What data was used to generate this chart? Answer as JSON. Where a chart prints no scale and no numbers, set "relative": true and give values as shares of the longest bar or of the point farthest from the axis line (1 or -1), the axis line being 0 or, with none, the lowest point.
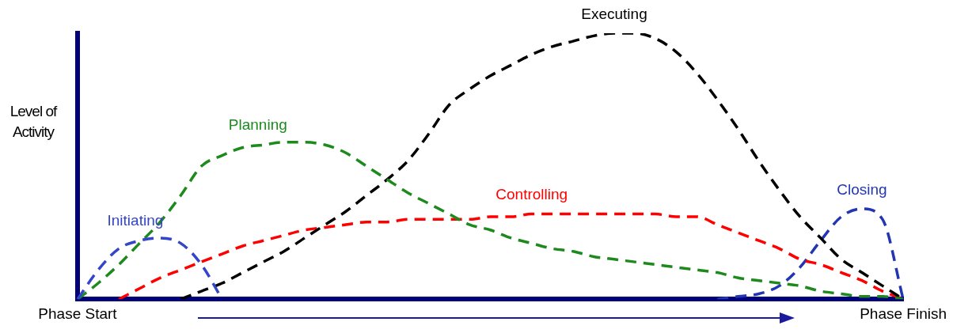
{
  "chart_data": {
    "type": "line",
    "relative": true,
    "ylabel": "Level of Activity",
    "categories": [
      "Phase Start",
      null,
      null,
      null,
      null,
      null,
      null,
      null,
      null,
      null,
      null,
      null,
      null,
      null,
      null,
      null,
      null,
      null,
      null,
      null,
      null,
      null,
      null,
      null,
      null,
      null,
      null,
      null,
      null,
      null,
      null,
      null,
      null,
      null,
      null,
      null,
      null,
      null,
      null,
      null,
      "Phase Finish"
    ],
    "grid": false,
    "legend": false,
    "marker": "none",
    "line_style": "dashed",
    "series": [
      {
        "name": "Initiating",
        "color": "#3345c8",
        "values": [
          0,
          0.11,
          0.19,
          0.22,
          0.23,
          0.21,
          0.13,
          0,
          null,
          null,
          null,
          null,
          null,
          null,
          null,
          null,
          null,
          null,
          null,
          null,
          null,
          null,
          null,
          null,
          null,
          null,
          null,
          null,
          null,
          null,
          null,
          null,
          null,
          null,
          null,
          null,
          null,
          null,
          null,
          null,
          null
        ]
      },
      {
        "name": "Planning",
        "color": "#1e8a1e",
        "values": [
          0,
          0.06,
          0.13,
          0.21,
          0.29,
          0.39,
          0.5,
          0.54,
          0.57,
          0.58,
          0.59,
          0.59,
          0.58,
          0.55,
          0.5,
          0.45,
          0.4,
          0.36,
          0.32,
          0.28,
          0.26,
          0.23,
          0.21,
          0.19,
          0.18,
          0.16,
          0.15,
          0.14,
          0.13,
          0.12,
          0.11,
          0.1,
          0.08,
          0.07,
          0.06,
          0.05,
          0.03,
          0.02,
          0.01,
          0.01,
          0
        ]
      },
      {
        "name": "Executing",
        "color": "#000000",
        "values": [
          null,
          null,
          null,
          null,
          null,
          0,
          0.03,
          0.06,
          0.1,
          0.14,
          0.18,
          0.23,
          0.28,
          0.33,
          0.39,
          0.45,
          0.52,
          0.62,
          0.73,
          0.79,
          0.84,
          0.88,
          0.92,
          0.95,
          0.97,
          0.99,
          1.0,
          1.0,
          0.98,
          0.93,
          0.85,
          0.75,
          0.64,
          0.52,
          0.41,
          0.31,
          0.23,
          0.15,
          0.1,
          0.05,
          0
        ]
      },
      {
        "name": "Controlling",
        "color": "#ff0000",
        "values": [
          null,
          null,
          0,
          0.04,
          0.08,
          0.11,
          0.14,
          0.17,
          0.2,
          0.22,
          0.24,
          0.26,
          0.27,
          0.28,
          0.29,
          0.29,
          0.3,
          0.3,
          0.3,
          0.3,
          0.31,
          0.31,
          0.32,
          0.32,
          0.32,
          0.32,
          0.32,
          0.32,
          0.32,
          0.31,
          0.31,
          0.28,
          0.25,
          0.22,
          0.19,
          0.15,
          0.13,
          0.1,
          0.07,
          0.03,
          0
        ]
      },
      {
        "name": "Closing",
        "color": "#2236b4",
        "values": [
          null,
          null,
          null,
          null,
          null,
          null,
          null,
          null,
          null,
          null,
          null,
          null,
          null,
          null,
          null,
          null,
          null,
          null,
          null,
          null,
          null,
          null,
          null,
          null,
          null,
          null,
          null,
          null,
          null,
          null,
          null,
          0,
          0.01,
          0.02,
          0.05,
          0.12,
          0.22,
          0.31,
          0.34,
          0.3,
          0
        ]
      }
    ]
  }
}
